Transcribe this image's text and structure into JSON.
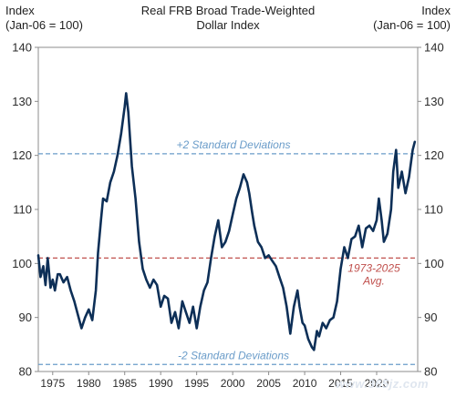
{
  "chart_data": {
    "type": "line",
    "title": "Real FRB Broad Trade-Weighted",
    "subtitle": "Dollar Index",
    "ylabel_left": [
      "Index",
      "(Jan-06 = 100)"
    ],
    "ylabel_right": [
      "Index",
      "(Jan-06 = 100)"
    ],
    "ylim": [
      80,
      140
    ],
    "xlim": [
      1973,
      2025.7
    ],
    "y_ticks": [
      80,
      90,
      100,
      110,
      120,
      130,
      140
    ],
    "x_ticks": [
      1975,
      1980,
      1985,
      1990,
      1995,
      2000,
      2005,
      2010,
      2015,
      2020
    ],
    "x_tick_labels": [
      "1975",
      "1980",
      "1985",
      "1990",
      "1995",
      "2000",
      "2005",
      "2010",
      "2015",
      "2020"
    ],
    "grid": false,
    "series": [
      {
        "color": "#0d2f57",
        "x": [
          1973.0,
          1973.3,
          1973.7,
          1974.0,
          1974.3,
          1974.7,
          1975.0,
          1975.3,
          1975.7,
          1976.0,
          1976.5,
          1977.0,
          1977.5,
          1978.0,
          1978.5,
          1979.0,
          1979.5,
          1980.0,
          1980.5,
          1981.0,
          1981.3,
          1981.7,
          1982.0,
          1982.5,
          1983.0,
          1983.5,
          1984.0,
          1984.5,
          1985.0,
          1985.2,
          1985.5,
          1986.0,
          1986.5,
          1987.0,
          1987.5,
          1988.0,
          1988.5,
          1989.0,
          1989.5,
          1990.0,
          1990.5,
          1991.0,
          1991.5,
          1992.0,
          1992.5,
          1993.0,
          1993.5,
          1994.0,
          1994.5,
          1995.0,
          1995.5,
          1996.0,
          1996.5,
          1997.0,
          1997.5,
          1998.0,
          1998.5,
          1999.0,
          1999.5,
          2000.0,
          2000.5,
          2001.0,
          2001.5,
          2002.0,
          2002.3,
          2002.7,
          2003.0,
          2003.5,
          2004.0,
          2004.5,
          2005.0,
          2005.5,
          2006.0,
          2006.5,
          2007.0,
          2007.5,
          2008.0,
          2008.5,
          2009.0,
          2009.3,
          2009.7,
          2010.0,
          2010.5,
          2011.0,
          2011.3,
          2011.7,
          2012.0,
          2012.5,
          2013.0,
          2013.5,
          2014.0,
          2014.5,
          2015.0,
          2015.5,
          2016.0,
          2016.5,
          2017.0,
          2017.5,
          2018.0,
          2018.5,
          2019.0,
          2019.5,
          2020.0,
          2020.3,
          2020.7,
          2021.0,
          2021.5,
          2022.0,
          2022.3,
          2022.7,
          2023.0,
          2023.5,
          2024.0,
          2024.5,
          2025.0,
          2025.3
        ],
        "values": [
          101.5,
          97.5,
          99.5,
          96.0,
          101.0,
          95.5,
          97.0,
          95.0,
          98.0,
          98.0,
          96.5,
          97.5,
          95.0,
          93.0,
          90.5,
          88.0,
          90.0,
          91.5,
          89.5,
          95.0,
          102.0,
          108.0,
          112.0,
          111.5,
          115.0,
          117.0,
          120.0,
          124.0,
          129.0,
          131.5,
          128.0,
          118.0,
          112.0,
          104.0,
          99.0,
          97.0,
          95.5,
          97.0,
          96.0,
          92.0,
          94.0,
          93.5,
          89.0,
          91.0,
          88.0,
          93.0,
          91.0,
          89.0,
          92.0,
          88.0,
          92.0,
          95.0,
          96.5,
          101.0,
          105.0,
          108.0,
          103.0,
          104.0,
          106.0,
          109.0,
          112.0,
          114.0,
          116.5,
          115.0,
          113.0,
          109.5,
          107.0,
          104.0,
          103.0,
          101.0,
          101.5,
          100.5,
          99.5,
          97.5,
          95.5,
          92.0,
          87.0,
          92.0,
          95.0,
          92.0,
          89.0,
          88.5,
          86.0,
          84.5,
          84.0,
          87.5,
          86.5,
          89.0,
          88.0,
          89.5,
          90.0,
          93.0,
          99.0,
          103.0,
          101.0,
          104.5,
          105.0,
          107.0,
          103.0,
          106.5,
          107.0,
          106.0,
          108.0,
          112.0,
          108.0,
          104.0,
          105.5,
          110.0,
          117.0,
          121.0,
          114.0,
          117.0,
          113.0,
          116.0,
          121.0,
          122.5
        ]
      }
    ],
    "reference_lines": [
      {
        "y": 120.3,
        "label": "+2 Standard Deviations",
        "color": "#6a9cc9"
      },
      {
        "y": 101.0,
        "label": "1973-2025\nAvg.",
        "color": "#c0504d"
      },
      {
        "y": 81.3,
        "label": "-2 Standard Deviations",
        "color": "#6a9cc9"
      }
    ]
  },
  "watermark": "www.365jz.com"
}
